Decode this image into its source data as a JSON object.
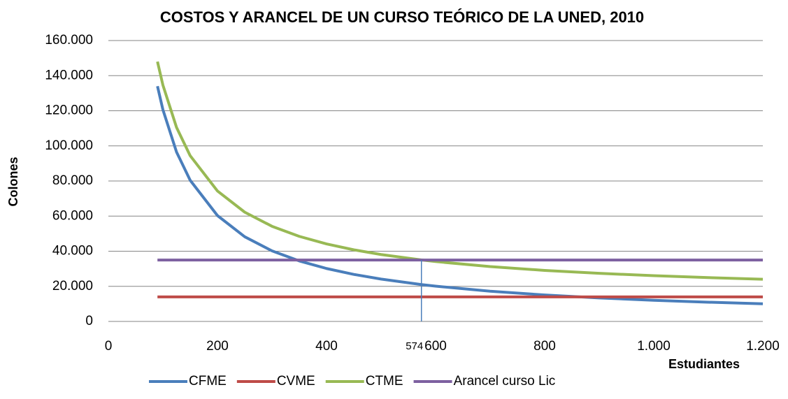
{
  "chart_data": {
    "type": "line",
    "title": "COSTOS Y ARANCEL DE UN CURSO TEÓRICO DE LA UNED, 2010",
    "x_label": "Estudiantes",
    "y_label": "Colones",
    "x": [
      90,
      100,
      125,
      150,
      200,
      250,
      300,
      350,
      400,
      450,
      500,
      574,
      600,
      700,
      800,
      900,
      1000,
      1100,
      1200
    ],
    "series": [
      {
        "name": "CFME",
        "color": "#4a7ebb",
        "values": [
          134000,
          120600,
          96480,
          80400,
          60300,
          48240,
          40200,
          34457,
          30150,
          26800,
          24120,
          21010,
          20100,
          17229,
          15075,
          13400,
          12060,
          10964,
          10050
        ]
      },
      {
        "name": "CVME",
        "color": "#be4b48",
        "values": [
          14000,
          14000,
          14000,
          14000,
          14000,
          14000,
          14000,
          14000,
          14000,
          14000,
          14000,
          14000,
          14000,
          14000,
          14000,
          14000,
          14000,
          14000,
          14000
        ]
      },
      {
        "name": "CTME",
        "color": "#98b954",
        "values": [
          148000,
          134600,
          110480,
          94400,
          74300,
          62240,
          54200,
          48457,
          44150,
          40800,
          38120,
          35010,
          34100,
          31229,
          29075,
          27400,
          26060,
          24964,
          24050
        ]
      },
      {
        "name": "Arancel curso Lic",
        "color": "#7d60a0",
        "values": [
          35000,
          35000,
          35000,
          35000,
          35000,
          35000,
          35000,
          35000,
          35000,
          35000,
          35000,
          35000,
          35000,
          35000,
          35000,
          35000,
          35000,
          35000,
          35000
        ]
      }
    ],
    "annotation": {
      "x": 574,
      "y": 35000,
      "color": "#4a7ebb"
    },
    "xlim": [
      0,
      1200
    ],
    "xticks": [
      0,
      200,
      400,
      600,
      800,
      {
        "value": 1000,
        "label": "1.000"
      },
      {
        "value": 1200,
        "label": "1.200"
      }
    ],
    "ylim": [
      0,
      160000
    ],
    "yticks": [
      0,
      {
        "value": 20000,
        "label": "20.000"
      },
      {
        "value": 40000,
        "label": "40.000"
      },
      {
        "value": 60000,
        "label": "60.000"
      },
      {
        "value": 80000,
        "label": "80.000"
      },
      {
        "value": 100000,
        "label": "100.000"
      },
      {
        "value": 120000,
        "label": "120.000"
      },
      {
        "value": 140000,
        "label": "140.000"
      },
      {
        "value": 160000,
        "label": "160.000"
      }
    ],
    "grid": true,
    "legend": "bottom"
  }
}
